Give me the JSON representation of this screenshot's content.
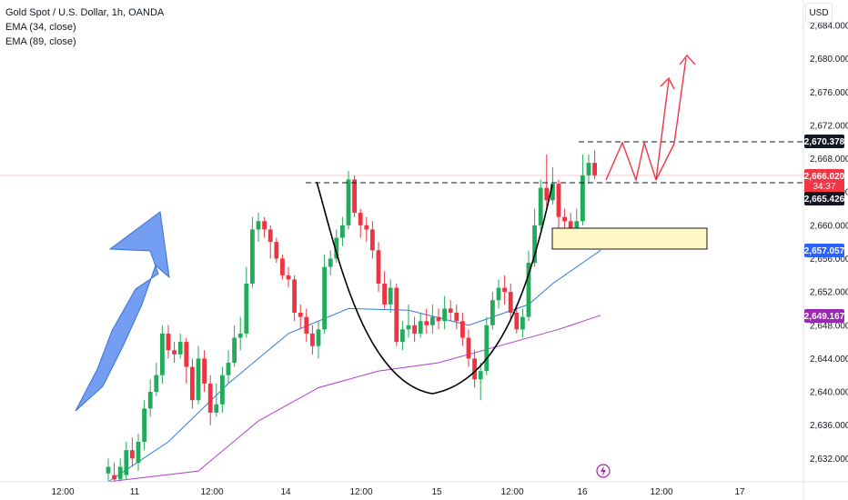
{
  "legend": {
    "symbol": "Gold Spot / U.S. Dollar, 1h, OANDA",
    "ema1": "EMA (34, close)",
    "ema2": "EMA (89, close)"
  },
  "currency": "USD",
  "colors": {
    "up": "#22ab5b",
    "down": "#ef3340",
    "ema34": "#2f7bd8",
    "ema89": "#b23fc9",
    "price_label": "#f23645",
    "ema34_label": "#2962ff",
    "ema89_label": "#9c27b0",
    "level_label": "#131722",
    "arrow_blue": "#5b8def",
    "arrow_red": "#f23645",
    "zone_fill": "#fff8c4"
  },
  "price_labels": {
    "level_top": "2,670.378",
    "current_price": "2,666.020",
    "countdown": "34:37",
    "level_bottom": "2,665.426",
    "ema34": "2,657.057",
    "ema89": "2,649.167"
  },
  "chart_data": {
    "type": "candlestick",
    "y_ticks": [
      "2,632.000",
      "2,636.000",
      "2,640.000",
      "2,644.000",
      "2,648.000",
      "2,652.000",
      "2,656.000",
      "2,660.000",
      "2,664.000",
      "2,668.000",
      "2,672.000",
      "2,676.000",
      "2,680.000",
      "2,684.000"
    ],
    "y_tick_values": [
      2632,
      2636,
      2640,
      2644,
      2648,
      2652,
      2656,
      2660,
      2664,
      2668,
      2672,
      2676,
      2680,
      2684
    ],
    "x_ticks": [
      "12:00",
      "11",
      "12:00",
      "14",
      "12:00",
      "15",
      "12:00",
      "16",
      "12:00",
      "17"
    ],
    "ylim": [
      2630.5,
      2685.5
    ],
    "candles": [
      [
        2630.2,
        2631.0,
        2629.0,
        2632.0
      ],
      [
        2630.0,
        2629.5,
        2628.5,
        2631.5
      ],
      [
        2629.5,
        2631.0,
        2629.0,
        2632.0
      ],
      [
        2630.0,
        2633.0,
        2629.5,
        2634.0
      ],
      [
        2633.0,
        2632.0,
        2631.0,
        2634.5
      ],
      [
        2631.5,
        2634.0,
        2630.5,
        2635.0
      ],
      [
        2634.0,
        2638.0,
        2633.0,
        2639.0
      ],
      [
        2638.0,
        2640.0,
        2637.0,
        2641.5
      ],
      [
        2640.0,
        2642.0,
        2639.5,
        2643.5
      ],
      [
        2642.0,
        2647.0,
        2641.0,
        2648.0
      ],
      [
        2647.0,
        2645.0,
        2644.0,
        2648.0
      ],
      [
        2645.0,
        2644.5,
        2643.5,
        2646.0
      ],
      [
        2644.5,
        2646.0,
        2644.0,
        2647.0
      ],
      [
        2646.0,
        2643.0,
        2641.0,
        2646.5
      ],
      [
        2643.0,
        2639.0,
        2638.0,
        2644.0
      ],
      [
        2639.0,
        2644.0,
        2638.5,
        2645.5
      ],
      [
        2644.0,
        2641.0,
        2640.0,
        2645.0
      ],
      [
        2641.0,
        2637.5,
        2636.0,
        2642.0
      ],
      [
        2637.5,
        2638.5,
        2637.0,
        2641.0
      ],
      [
        2638.5,
        2642.0,
        2637.5,
        2643.0
      ],
      [
        2642.0,
        2643.5,
        2641.0,
        2645.0
      ],
      [
        2643.5,
        2646.5,
        2643.0,
        2648.0
      ],
      [
        2646.5,
        2647.0,
        2645.0,
        2649.0
      ],
      [
        2647.0,
        2653.0,
        2646.5,
        2655.0
      ],
      [
        2653.0,
        2659.5,
        2652.5,
        2661.0
      ],
      [
        2659.5,
        2660.5,
        2658.0,
        2661.5
      ],
      [
        2660.5,
        2659.5,
        2658.5,
        2661.0
      ],
      [
        2659.5,
        2658.0,
        2656.0,
        2660.0
      ],
      [
        2658.0,
        2656.0,
        2655.5,
        2658.5
      ],
      [
        2656.0,
        2654.0,
        2653.5,
        2656.5
      ],
      [
        2654.0,
        2653.5,
        2652.5,
        2655.0
      ],
      [
        2653.5,
        2649.5,
        2648.5,
        2654.0
      ],
      [
        2649.5,
        2649.0,
        2647.5,
        2650.5
      ],
      [
        2649.0,
        2647.0,
        2646.0,
        2650.0
      ],
      [
        2647.0,
        2645.5,
        2644.5,
        2648.0
      ],
      [
        2645.5,
        2647.5,
        2644.0,
        2648.5
      ],
      [
        2647.5,
        2655.0,
        2647.0,
        2656.5
      ],
      [
        2655.0,
        2656.0,
        2654.0,
        2657.0
      ],
      [
        2656.0,
        2658.5,
        2655.5,
        2659.5
      ],
      [
        2658.5,
        2660.0,
        2657.5,
        2661.0
      ],
      [
        2660.0,
        2665.5,
        2659.5,
        2666.5
      ],
      [
        2665.5,
        2661.5,
        2661.0,
        2666.0
      ],
      [
        2661.5,
        2660.0,
        2658.5,
        2662.0
      ],
      [
        2660.0,
        2659.5,
        2658.0,
        2661.0
      ],
      [
        2659.5,
        2657.0,
        2656.0,
        2660.5
      ],
      [
        2657.0,
        2653.0,
        2652.0,
        2658.0
      ],
      [
        2653.0,
        2650.5,
        2650.0,
        2654.5
      ],
      [
        2650.5,
        2652.5,
        2649.5,
        2653.5
      ],
      [
        2652.5,
        2646.0,
        2645.5,
        2653.0
      ],
      [
        2646.0,
        2647.5,
        2645.0,
        2648.5
      ],
      [
        2647.5,
        2648.0,
        2646.5,
        2650.5
      ],
      [
        2648.0,
        2647.0,
        2646.0,
        2649.0
      ],
      [
        2647.0,
        2648.5,
        2646.5,
        2649.5
      ],
      [
        2648.5,
        2648.0,
        2647.0,
        2650.0
      ],
      [
        2648.0,
        2649.0,
        2647.0,
        2650.5
      ],
      [
        2649.0,
        2648.5,
        2647.5,
        2650.0
      ],
      [
        2648.5,
        2650.0,
        2647.5,
        2651.5
      ],
      [
        2650.0,
        2649.5,
        2648.5,
        2651.0
      ],
      [
        2649.5,
        2648.5,
        2647.5,
        2650.5
      ],
      [
        2648.5,
        2646.5,
        2645.5,
        2649.5
      ],
      [
        2646.5,
        2644.0,
        2643.0,
        2647.5
      ],
      [
        2644.0,
        2641.5,
        2640.5,
        2645.0
      ],
      [
        2641.5,
        2642.5,
        2639.0,
        2643.5
      ],
      [
        2642.5,
        2648.0,
        2642.0,
        2649.0
      ],
      [
        2648.0,
        2651.0,
        2647.5,
        2652.0
      ],
      [
        2651.0,
        2652.5,
        2650.0,
        2653.5
      ],
      [
        2652.5,
        2652.0,
        2650.5,
        2654.0
      ],
      [
        2652.0,
        2649.5,
        2648.5,
        2653.0
      ],
      [
        2649.5,
        2647.5,
        2647.0,
        2650.5
      ],
      [
        2647.5,
        2649.0,
        2646.5,
        2650.0
      ],
      [
        2649.0,
        2655.5,
        2648.5,
        2657.0
      ],
      [
        2655.5,
        2660.0,
        2655.0,
        2662.0
      ],
      [
        2660.0,
        2664.5,
        2659.5,
        2665.5
      ],
      [
        2664.5,
        2663.0,
        2662.0,
        2668.5
      ],
      [
        2663.0,
        2665.0,
        2662.5,
        2667.0
      ],
      [
        2665.0,
        2661.0,
        2659.0,
        2665.5
      ],
      [
        2661.0,
        2660.5,
        2659.5,
        2662.0
      ],
      [
        2660.5,
        2659.0,
        2658.0,
        2661.5
      ],
      [
        2659.0,
        2660.5,
        2658.5,
        2662.0
      ],
      [
        2660.5,
        2666.0,
        2660.0,
        2668.5
      ],
      [
        2666.0,
        2667.5,
        2665.0,
        2668.5
      ],
      [
        2667.5,
        2666.0,
        2665.5,
        2669.0
      ]
    ],
    "ema34": [
      [
        0,
        2628.5
      ],
      [
        10,
        2634.0
      ],
      [
        20,
        2641.0
      ],
      [
        30,
        2647.0
      ],
      [
        40,
        2650.0
      ],
      [
        50,
        2649.8
      ],
      [
        60,
        2648.0
      ],
      [
        70,
        2650.5
      ],
      [
        74,
        2653.0
      ],
      [
        82,
        2657.0
      ]
    ],
    "ema89": [
      [
        0,
        2625.0
      ],
      [
        15,
        2630.5
      ],
      [
        25,
        2636.5
      ],
      [
        35,
        2640.5
      ],
      [
        45,
        2642.5
      ],
      [
        55,
        2643.5
      ],
      [
        65,
        2645.5
      ],
      [
        75,
        2647.5
      ],
      [
        82,
        2649.2
      ]
    ],
    "levels": {
      "resistance_top": 2670.378,
      "resistance_bottom": 2665.426,
      "current": 2666.02
    },
    "zone": {
      "low": 2657.8,
      "high": 2660.5
    }
  }
}
